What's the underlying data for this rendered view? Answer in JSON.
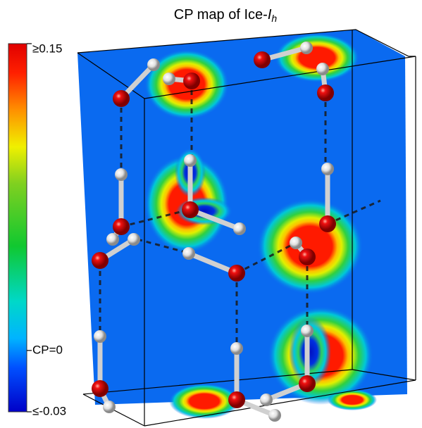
{
  "title": {
    "prefix": "CP map of Ice-",
    "symbol": "I",
    "subscript": "h"
  },
  "colorbar": {
    "range": [
      -0.03,
      0.15
    ],
    "ticks": [
      {
        "value": 0.15,
        "label": "≥0.15"
      },
      {
        "value": 0,
        "label": "CP=0"
      },
      {
        "value": -0.03,
        "label": "≤-0.03"
      }
    ]
  }
}
